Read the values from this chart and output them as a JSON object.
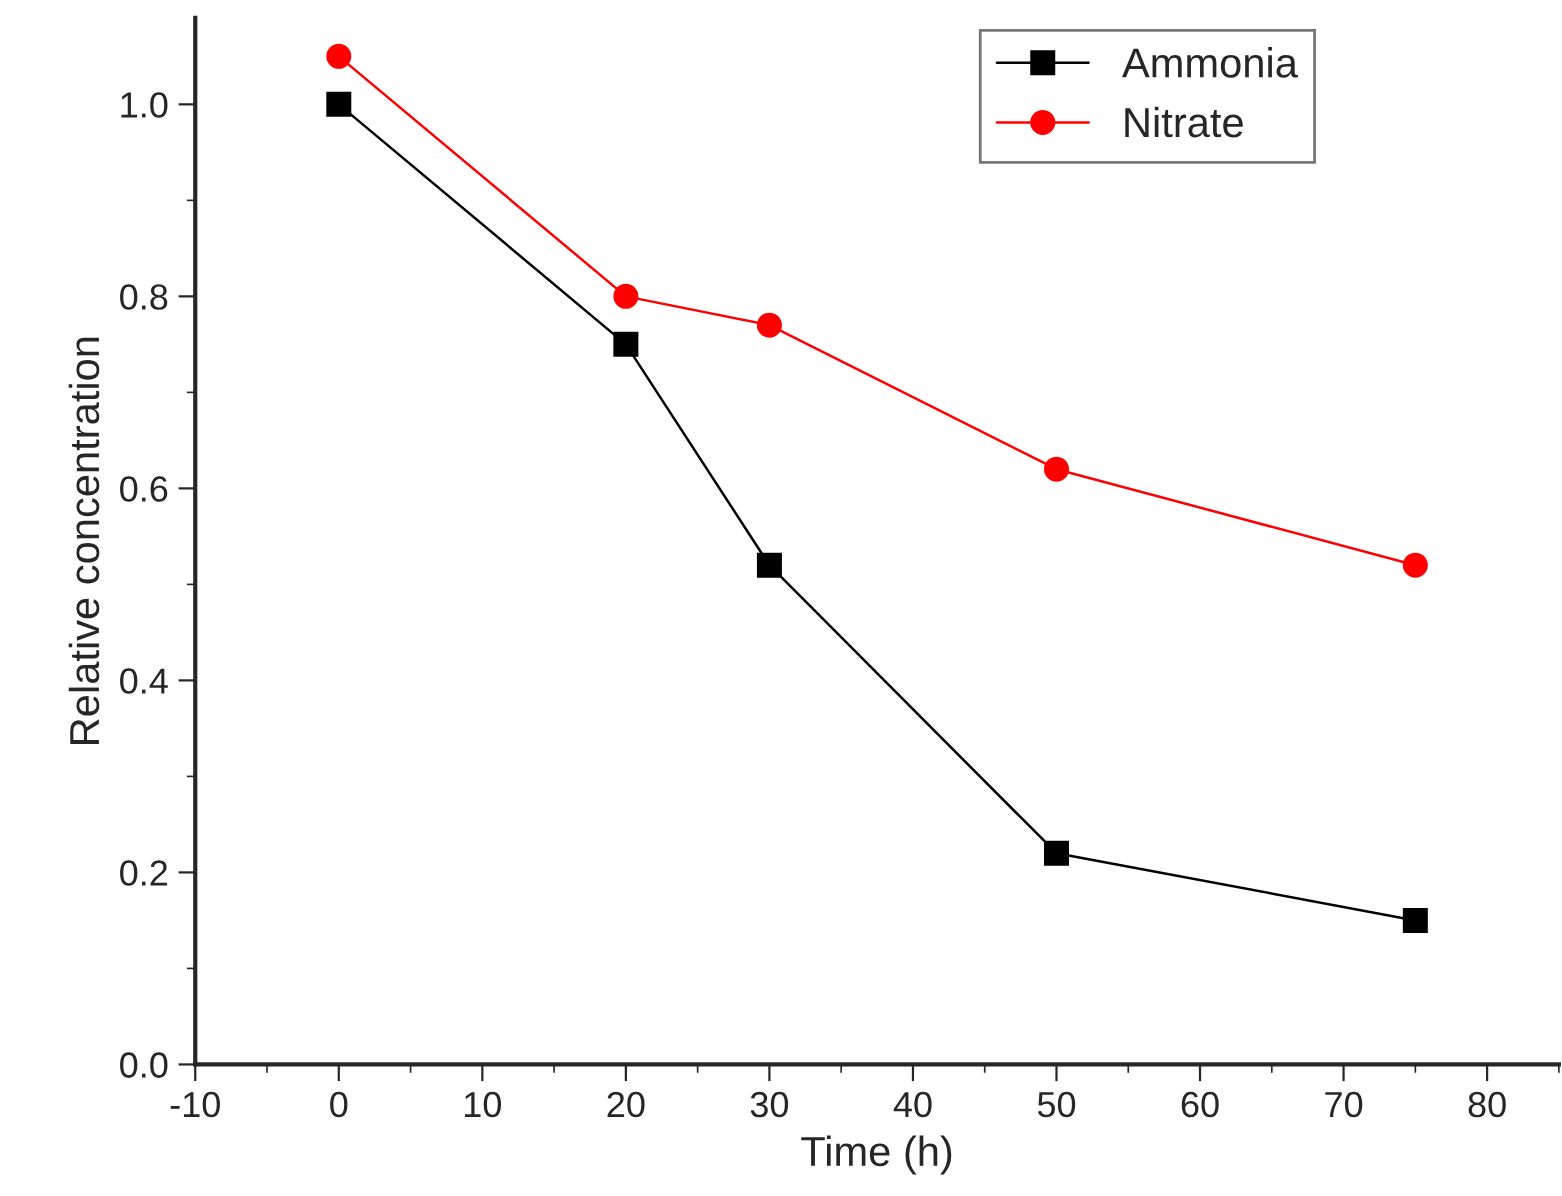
{
  "chart_data": {
    "type": "line",
    "xlabel": "Time (h)",
    "ylabel": "Relative concentration",
    "x": [
      0,
      20,
      30,
      50,
      75
    ],
    "series": [
      {
        "name": "Ammonia",
        "color": "#000000",
        "marker": "square",
        "values": [
          1.0,
          0.75,
          0.52,
          0.22,
          0.15
        ]
      },
      {
        "name": "Nitrate",
        "color": "#ff0000",
        "marker": "circle",
        "values": [
          1.05,
          0.8,
          0.77,
          0.62,
          0.52
        ]
      }
    ],
    "xlim": [
      -10,
      85
    ],
    "xticks": [
      -10,
      0,
      10,
      20,
      30,
      40,
      50,
      60,
      70,
      80
    ],
    "ylim": [
      0,
      1.09
    ],
    "yticks": [
      {
        "value": 0,
        "label": "0.0"
      },
      {
        "value": 0.2,
        "label": "0.2"
      },
      {
        "value": 0.4,
        "label": "0.4"
      },
      {
        "value": 0.6,
        "label": "0.6"
      },
      {
        "value": 0.8,
        "label": "0.8"
      },
      {
        "value": 1.0,
        "label": "1.0"
      }
    ],
    "grid": false,
    "legend": "top right",
    "line_style": "solid"
  }
}
